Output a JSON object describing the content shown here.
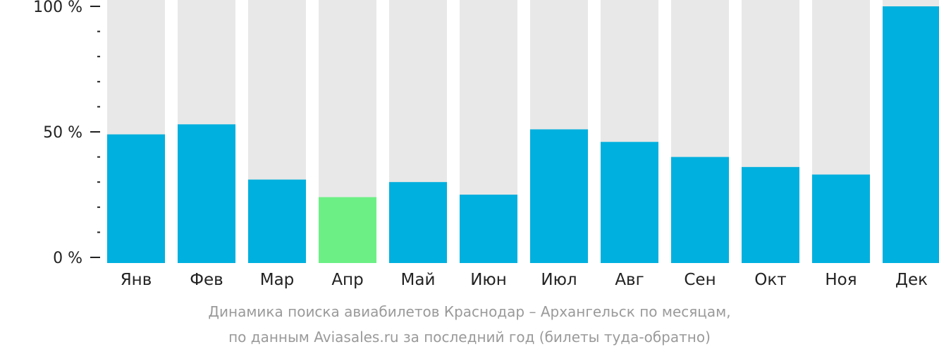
{
  "chart_data": {
    "type": "bar",
    "categories": [
      "Янв",
      "Фев",
      "Мар",
      "Апр",
      "Май",
      "Июн",
      "Июл",
      "Авг",
      "Сен",
      "Окт",
      "Ноя",
      "Дек"
    ],
    "values": [
      49,
      53,
      31,
      24,
      30,
      25,
      51,
      46,
      40,
      36,
      33,
      100
    ],
    "highlight_index": 3,
    "ylim": [
      0,
      100
    ],
    "yticks": [
      {
        "value": 0,
        "label": "0 %"
      },
      {
        "value": 50,
        "label": "50 %"
      },
      {
        "value": 100,
        "label": "100 %"
      }
    ],
    "colors": {
      "bar": "#00b0de",
      "highlight": "#6cf085",
      "background_bar": "#e8e8e8",
      "axis": "#222222"
    }
  },
  "caption": {
    "line1": "Динамика поиска авиабилетов Краснодар – Архангельск по месяцам,",
    "line2": "по данным Aviasales.ru за последний год (билеты туда-обратно)"
  }
}
